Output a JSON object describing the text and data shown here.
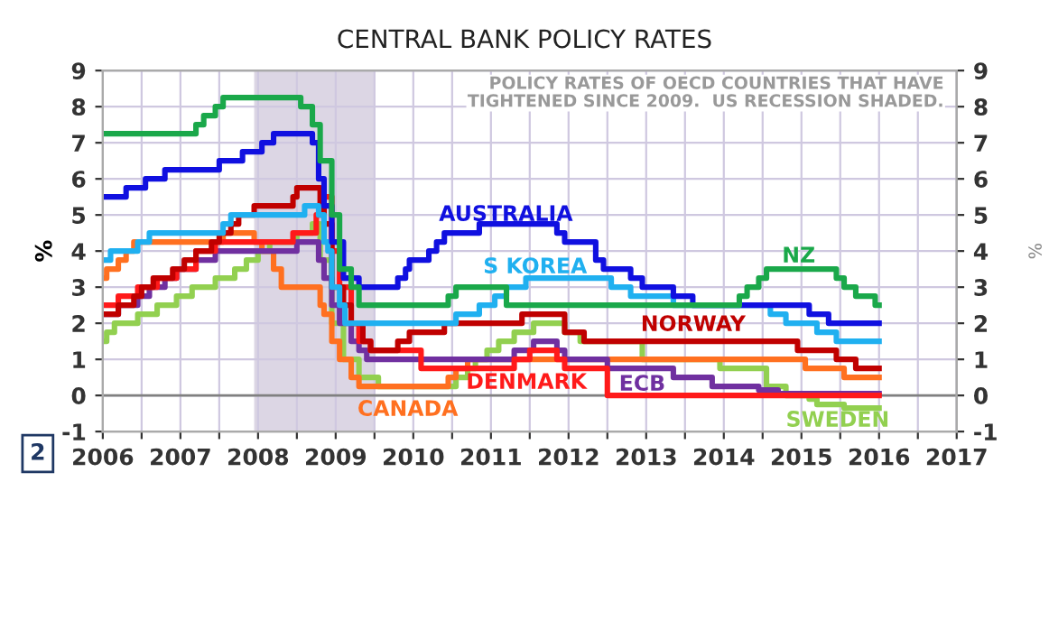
{
  "chart_data": {
    "type": "step",
    "title": "CENTRAL BANK POLICY RATES",
    "subtitle": "POLICY RATES OF OECD COUNTRIES THAT HAVE\nTIGHTENED SINCE 2009.  US RECESSION SHADED.",
    "ylabel": "%",
    "y2label": "%",
    "annotations": [
      "2"
    ],
    "xlim": [
      2006,
      2017
    ],
    "xticks": [
      2006,
      {
        "value": 2006.5,
        "label": null
      },
      2007,
      {
        "value": 2007.5,
        "label": null
      },
      2008,
      {
        "value": 2008.5,
        "label": null
      },
      2009,
      {
        "value": 2009.5,
        "label": null
      },
      2010,
      {
        "value": 2010.5,
        "label": null
      },
      2011,
      {
        "value": 2011.5,
        "label": null
      },
      2012,
      {
        "value": 2012.5,
        "label": null
      },
      2013,
      {
        "value": 2013.5,
        "label": null
      },
      2014,
      {
        "value": 2014.5,
        "label": null
      },
      2015,
      {
        "value": 2015.5,
        "label": null
      },
      2016,
      {
        "value": 2016.5,
        "label": null
      },
      2017
    ],
    "ylim": [
      -1,
      9
    ],
    "yticks": [
      -1,
      0,
      1,
      2,
      3,
      4,
      5,
      6,
      7,
      8,
      9
    ],
    "y2lim": [
      -1,
      9
    ],
    "y2ticks": [
      -1,
      0,
      1,
      2,
      3,
      4,
      5,
      6,
      7,
      8,
      9
    ],
    "grid": true,
    "legend": false,
    "bands": [
      {
        "axis": "x",
        "from": 2007.95,
        "to": 2009.5,
        "color": "#dcd6e4"
      }
    ],
    "ref_lines": [
      {
        "axis": "y",
        "value": 0,
        "color": "#808080"
      }
    ],
    "series": [
      {
        "name": "NZ",
        "color": "#1aa84a",
        "x": [
          2006,
          2007.2,
          2007.3,
          2007.45,
          2007.55,
          2008.55,
          2008.7,
          2008.8,
          2008.95,
          2009.05,
          2009.2,
          2009.3,
          2010.45,
          2010.55,
          2011.2,
          2014.2,
          2014.3,
          2014.45,
          2014.55,
          2015.45,
          2015.55,
          2015.7,
          2015.95,
          2016
        ],
        "values": [
          7.25,
          7.5,
          7.75,
          8.0,
          8.25,
          8.0,
          7.5,
          6.5,
          5.0,
          3.5,
          3.0,
          2.5,
          2.75,
          3.0,
          2.5,
          2.75,
          3.0,
          3.25,
          3.5,
          3.25,
          3.0,
          2.75,
          2.5,
          2.5
        ]
      },
      {
        "name": "AUSTRALIA",
        "color": "#1010e0",
        "x": [
          2006,
          2006.3,
          2006.55,
          2006.8,
          2007.5,
          2007.8,
          2008.05,
          2008.2,
          2008.7,
          2008.78,
          2008.85,
          2008.95,
          2009.1,
          2009.3,
          2009.8,
          2009.9,
          2009.95,
          2010.2,
          2010.3,
          2010.4,
          2010.85,
          2011.85,
          2011.95,
          2012.35,
          2012.45,
          2012.8,
          2012.95,
          2013.35,
          2013.6,
          2015.1,
          2015.35,
          2016
        ],
        "values": [
          5.5,
          5.75,
          6.0,
          6.25,
          6.5,
          6.75,
          7.0,
          7.25,
          7.0,
          6.0,
          5.25,
          4.25,
          3.25,
          3.0,
          3.25,
          3.5,
          3.75,
          4.0,
          4.25,
          4.5,
          4.75,
          4.5,
          4.25,
          3.75,
          3.5,
          3.25,
          3.0,
          2.75,
          2.5,
          2.25,
          2.0,
          2.0
        ]
      },
      {
        "name": "S KOREA",
        "color": "#20b0f0",
        "x": [
          2006,
          2006.1,
          2006.45,
          2006.6,
          2007.55,
          2007.65,
          2008.6,
          2008.78,
          2008.85,
          2008.9,
          2008.95,
          2009.05,
          2009.12,
          2010.55,
          2010.85,
          2011.05,
          2011.2,
          2011.45,
          2012.55,
          2012.8,
          2013.35,
          2014.6,
          2014.8,
          2015.2,
          2015.45,
          2016
        ],
        "values": [
          3.75,
          4.0,
          4.25,
          4.5,
          4.75,
          5.0,
          5.25,
          5.0,
          4.25,
          4.0,
          3.0,
          2.5,
          2.0,
          2.25,
          2.5,
          2.75,
          3.0,
          3.25,
          3.0,
          2.75,
          2.5,
          2.25,
          2.0,
          1.75,
          1.5,
          1.5
        ]
      },
      {
        "name": "NORWAY",
        "color": "#c00000",
        "x": [
          2006,
          2006.2,
          2006.4,
          2006.5,
          2006.65,
          2006.9,
          2007.05,
          2007.2,
          2007.4,
          2007.5,
          2007.65,
          2007.75,
          2007.95,
          2008.45,
          2008.5,
          2008.8,
          2008.85,
          2008.95,
          2009.1,
          2009.2,
          2009.35,
          2009.45,
          2009.8,
          2009.95,
          2010.4,
          2011.4,
          2011.95,
          2012.2,
          2014.95,
          2015.45,
          2015.7,
          2016
        ],
        "values": [
          2.25,
          2.5,
          2.75,
          3.0,
          3.25,
          3.5,
          3.75,
          4.0,
          4.25,
          4.5,
          4.75,
          5.0,
          5.25,
          5.5,
          5.75,
          5.25,
          4.75,
          3.0,
          2.5,
          2.0,
          1.5,
          1.25,
          1.5,
          1.75,
          2.0,
          2.25,
          1.75,
          1.5,
          1.25,
          1.0,
          0.75,
          0.75
        ]
      },
      {
        "name": "DENMARK",
        "color": "#ff1a1a",
        "x": [
          2006,
          2006.2,
          2006.45,
          2006.7,
          2006.95,
          2007.2,
          2007.45,
          2008.45,
          2008.75,
          2008.85,
          2008.95,
          2009.05,
          2009.2,
          2009.3,
          2009.45,
          2010.1,
          2011.3,
          2011.5,
          2011.85,
          2011.95,
          2012.5,
          2016
        ],
        "values": [
          2.5,
          2.75,
          3.0,
          3.25,
          3.5,
          4.0,
          4.25,
          4.5,
          5.0,
          5.5,
          4.0,
          3.0,
          2.0,
          1.5,
          1.25,
          0.75,
          1.0,
          1.25,
          1.0,
          0.75,
          0.0,
          0.0
        ]
      },
      {
        "name": "ECB",
        "color": "#7030a0",
        "x": [
          2006,
          2006.2,
          2006.45,
          2006.6,
          2006.8,
          2006.95,
          2007.2,
          2007.45,
          2008.5,
          2008.78,
          2008.85,
          2008.95,
          2009.05,
          2009.2,
          2009.3,
          2009.4,
          2011.3,
          2011.55,
          2011.85,
          2011.95,
          2012.5,
          2013.35,
          2013.85,
          2014.45,
          2014.7,
          2016
        ],
        "values": [
          2.25,
          2.5,
          2.75,
          3.0,
          3.25,
          3.5,
          3.75,
          4.0,
          4.25,
          3.75,
          3.25,
          2.5,
          2.0,
          1.5,
          1.25,
          1.0,
          1.25,
          1.5,
          1.25,
          1.0,
          0.75,
          0.5,
          0.25,
          0.15,
          0.05,
          0.05
        ]
      },
      {
        "name": "CANADA",
        "color": "#ff7020",
        "x": [
          2006,
          2006.05,
          2006.2,
          2006.3,
          2006.4,
          2007.55,
          2007.95,
          2008.05,
          2008.2,
          2008.3,
          2008.8,
          2008.85,
          2008.95,
          2009.05,
          2009.2,
          2009.3,
          2010.45,
          2010.55,
          2010.7,
          2015.05,
          2015.55,
          2016
        ],
        "values": [
          3.25,
          3.5,
          3.75,
          4.0,
          4.25,
          4.5,
          4.25,
          4.0,
          3.5,
          3.0,
          2.5,
          2.25,
          1.5,
          1.0,
          0.5,
          0.25,
          0.5,
          0.75,
          1.0,
          0.75,
          0.5,
          0.5
        ]
      },
      {
        "name": "SWEDEN",
        "color": "#92d050",
        "x": [
          2006,
          2006.05,
          2006.15,
          2006.45,
          2006.7,
          2006.95,
          2007.15,
          2007.45,
          2007.7,
          2007.85,
          2008.0,
          2008.15,
          2008.5,
          2008.7,
          2008.8,
          2008.95,
          2009.1,
          2009.3,
          2009.55,
          2010.55,
          2010.7,
          2010.8,
          2010.95,
          2011.1,
          2011.3,
          2011.55,
          2011.95,
          2012.15,
          2012.95,
          2013.95,
          2014.55,
          2014.8,
          2015.1,
          2015.2,
          2015.55,
          2016
        ],
        "values": [
          1.5,
          1.75,
          2.0,
          2.25,
          2.5,
          2.75,
          3.0,
          3.25,
          3.5,
          3.75,
          4.0,
          4.25,
          4.5,
          4.75,
          3.75,
          2.0,
          1.0,
          0.5,
          0.25,
          0.5,
          0.75,
          1.0,
          1.25,
          1.5,
          1.75,
          2.0,
          1.75,
          1.5,
          1.0,
          0.75,
          0.25,
          0.0,
          -0.1,
          -0.25,
          -0.35,
          -0.35
        ]
      }
    ]
  }
}
